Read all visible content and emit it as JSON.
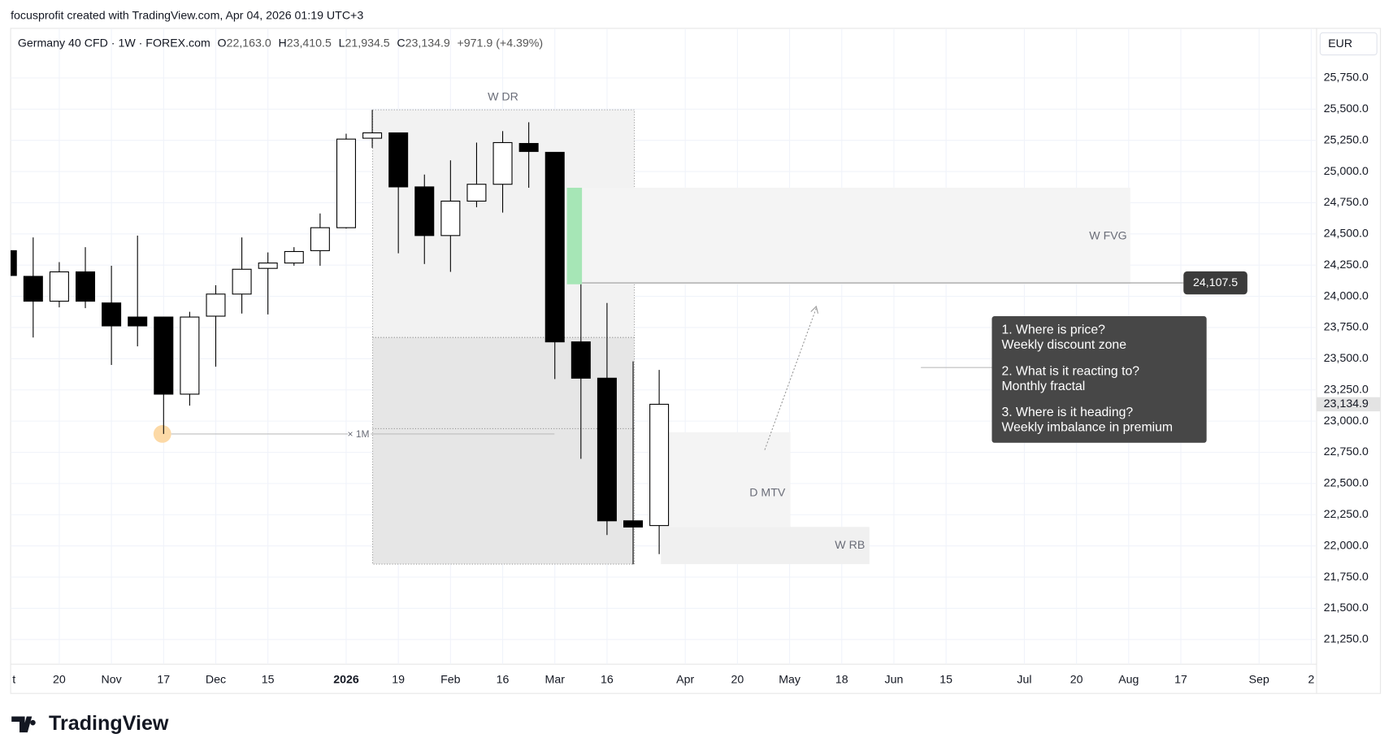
{
  "header": {
    "credit": "focusprofit created with TradingView.com, Apr 04, 2026 01:19 UTC+3"
  },
  "chart_data": {
    "type": "candlestick",
    "symbol": "Germany 40 CFD · 1W · FOREX.com",
    "legend_ohlc": [
      {
        "key": "O",
        "value": "22,163.0"
      },
      {
        "key": "H",
        "value": "23,410.5"
      },
      {
        "key": "L",
        "value": "21,934.5"
      },
      {
        "key": "C",
        "value": "23,134.9"
      }
    ],
    "change": "+971.9 (+4.39%)",
    "currency": "EUR",
    "up_color": "#ffffff",
    "down_color": "#000000",
    "border_color": "#000000",
    "ohlc": [
      [
        24366,
        24366,
        24167,
        24167
      ],
      [
        24160,
        24472,
        23670,
        23961
      ],
      [
        23961,
        24274,
        23912,
        24196
      ],
      [
        24196,
        24394,
        23905,
        23961
      ],
      [
        23947,
        24245,
        23450,
        23763
      ],
      [
        23834,
        24487,
        23599,
        23763
      ],
      [
        23834,
        23834,
        22897,
        23216
      ],
      [
        23216,
        23876,
        23124,
        23834
      ],
      [
        23841,
        24089,
        23436,
        24018
      ],
      [
        24018,
        24472,
        23862,
        24217
      ],
      [
        24224,
        24352,
        23855,
        24267
      ],
      [
        24267,
        24394,
        24245,
        24359
      ],
      [
        24366,
        24664,
        24245,
        24550
      ],
      [
        24550,
        25303,
        24543,
        25260
      ],
      [
        25267,
        25494,
        25189,
        25310
      ],
      [
        25310,
        25310,
        24345,
        24877
      ],
      [
        24877,
        24976,
        24259,
        24487
      ],
      [
        24487,
        25090,
        24196,
        24763
      ],
      [
        24763,
        25232,
        24714,
        24898
      ],
      [
        24898,
        25324,
        24671,
        25232
      ],
      [
        25225,
        25395,
        24870,
        25161
      ],
      [
        25154,
        25154,
        23337,
        23635
      ],
      [
        23635,
        24096,
        22698,
        23344
      ],
      [
        23344,
        23947,
        22087,
        22201
      ],
      [
        22201,
        23479,
        21853,
        22151
      ],
      [
        22163,
        23410.5,
        21934.5,
        23134.9
      ]
    ],
    "ylim": [
      21000,
      26000
    ],
    "yticks": [
      {
        "value": 21250,
        "label": "21,250.0"
      },
      {
        "value": 21500,
        "label": "21,500.0"
      },
      {
        "value": 21750,
        "label": "21,750.0"
      },
      {
        "value": 22000,
        "label": "22,000.0"
      },
      {
        "value": 22250,
        "label": "22,250.0"
      },
      {
        "value": 22500,
        "label": "22,500.0"
      },
      {
        "value": 22750,
        "label": "22,750.0"
      },
      {
        "value": 23000,
        "label": "23,000.0"
      },
      {
        "value": 23250,
        "label": "23,250.0"
      },
      {
        "value": 23500,
        "label": "23,500.0"
      },
      {
        "value": 23750,
        "label": "23,750.0"
      },
      {
        "value": 24000,
        "label": "24,000.0"
      },
      {
        "value": 24250,
        "label": "24,250.0"
      },
      {
        "value": 24500,
        "label": "24,500.0"
      },
      {
        "value": 24750,
        "label": "24,750.0"
      },
      {
        "value": 25000,
        "label": "25,000.0"
      },
      {
        "value": 25250,
        "label": "25,250.0"
      },
      {
        "value": 25500,
        "label": "25,500.0"
      },
      {
        "value": 25750,
        "label": "25,750.0"
      }
    ],
    "xticks": [
      {
        "value": 0,
        "label": "t"
      },
      {
        "value": 2,
        "label": "20"
      },
      {
        "value": 4,
        "label": "Nov"
      },
      {
        "value": 6,
        "label": "17"
      },
      {
        "value": 8,
        "label": "Dec"
      },
      {
        "value": 10,
        "label": "15"
      },
      {
        "value": 13,
        "label": "2026"
      },
      {
        "value": 15,
        "label": "19"
      },
      {
        "value": 17,
        "label": "Feb"
      },
      {
        "value": 19,
        "label": "16"
      },
      {
        "value": 21,
        "label": "Mar"
      },
      {
        "value": 23,
        "label": "16"
      },
      {
        "value": 26,
        "label": "Apr"
      },
      {
        "value": 28,
        "label": "20"
      },
      {
        "value": 30,
        "label": "May"
      },
      {
        "value": 32,
        "label": "18"
      },
      {
        "value": 34,
        "label": "Jun"
      },
      {
        "value": 36,
        "label": "15"
      },
      {
        "value": 39,
        "label": "Jul"
      },
      {
        "value": 41,
        "label": "20"
      },
      {
        "value": 43,
        "label": "Aug"
      },
      {
        "value": 45,
        "label": "17"
      },
      {
        "value": 48,
        "label": "Sep"
      },
      {
        "value": 50,
        "label": "2"
      }
    ],
    "grid": true,
    "price_line": {
      "value": 24107.5,
      "label": "24,107.5"
    },
    "last_price": {
      "value": 23134.9,
      "label": "23,134.9"
    },
    "annotations": {
      "w_dr": "W DR",
      "w_fvg": "W FVG",
      "d_mtv": "D MTV",
      "w_rb": "W RB",
      "x_1m": "× 1M"
    },
    "notes": [
      {
        "q": "1. Where is price?",
        "a": "Weekly discount zone"
      },
      {
        "q": "2. What is it reacting to?",
        "a": "Monthly fractal"
      },
      {
        "q": "3. Where is it heading?",
        "a": "Weekly imbalance in premium"
      }
    ]
  },
  "footer": {
    "brand": "TradingView"
  }
}
